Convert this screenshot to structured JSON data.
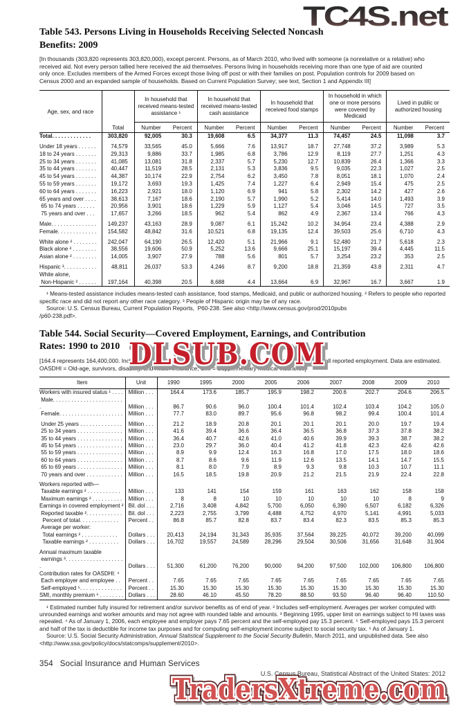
{
  "watermarks": {
    "top_right": "TC4S.net",
    "middle": "DLSUB.COM",
    "bottom": "TradersXtreme.com"
  },
  "table543": {
    "title": "Table 543. Persons Living in Households Receiving Selected Noncash\nBenefits: 2009",
    "note": "[In thousands (303,820 represents 303,820,000), except percent. Persons, as of March 2010, who lived with someone (a nonrelative or a relative) who received aid. Not every person tallied here received the aid themselves. Persons living in households receiving more than one type of aid are counted only once. Excludes members of the Armed Forces except those living off post or with their families on post. Population controls for 2009 based on Census 2000 and an expanded sample of households. Based on Current Population Survey; see text, Section 1 and Appendix III]",
    "stub_header": "Age, sex, and race",
    "total_header": "Total",
    "groups": [
      "In household that received means-tested assistance ¹",
      "In household that received means-tested cash assistance",
      "In household that received food stamps",
      "In household in which one or more persons were covered by Medicaid",
      "Lived in public or authorized housing"
    ],
    "subheaders": [
      "Number",
      "Percent"
    ],
    "rows": [
      {
        "label": "Total. . . . . . . . . . . . .",
        "bold": true,
        "gap": false,
        "values": [
          "303,820",
          "92,005",
          "30.3",
          "19,608",
          "6.5",
          "34,377",
          "11.3",
          "74,457",
          "24.5",
          "11,098",
          "3.7"
        ]
      },
      {
        "label": "Under 18 years . . . . . .",
        "bold": false,
        "gap": true,
        "values": [
          "74,579",
          "33,565",
          "45.0",
          "5,666",
          "7.6",
          "13,917",
          "18.7",
          "27,748",
          "37.2",
          "3,989",
          "5.3"
        ]
      },
      {
        "label": "18 to 24 years . . . . . . .",
        "bold": false,
        "gap": false,
        "values": [
          "29,313",
          "9,886",
          "33.7",
          "1,985",
          "6.8",
          "3,786",
          "12.9",
          "8,119",
          "27.7",
          "1,251",
          "4.3"
        ]
      },
      {
        "label": "25 to 34 years . . . . . . .",
        "bold": false,
        "gap": false,
        "values": [
          "41,085",
          "13,081",
          "31.8",
          "2,337",
          "5.7",
          "5,230",
          "12.7",
          "10,839",
          "26.4",
          "1,366",
          "3.3"
        ]
      },
      {
        "label": "35 to 44 years . . . . . . .",
        "bold": false,
        "gap": false,
        "values": [
          "40,447",
          "11,519",
          "28.5",
          "2,131",
          "5.3",
          "3,836",
          "9.5",
          "9,035",
          "22.3",
          "1,027",
          "2.5"
        ]
      },
      {
        "label": "45 to 54 years . . . . . . .",
        "bold": false,
        "gap": false,
        "values": [
          "44,387",
          "10,174",
          "22.9",
          "2,754",
          "6.2",
          "3,450",
          "7.8",
          "8,051",
          "18.1",
          "1,070",
          "2.4"
        ]
      },
      {
        "label": "55 to 59 years . . . . . . .",
        "bold": false,
        "gap": false,
        "values": [
          "19,172",
          "3,693",
          "19.3",
          "1,425",
          "7.4",
          "1,227",
          "6.4",
          "2,949",
          "15.4",
          "475",
          "2.5"
        ]
      },
      {
        "label": "60 to 64 years . . . . . . .",
        "bold": false,
        "gap": false,
        "values": [
          "16,223",
          "2,921",
          "18.0",
          "1,120",
          "6.9",
          "941",
          "5.8",
          "2,302",
          "14.2",
          "427",
          "2.6"
        ]
      },
      {
        "label": "65 years and over . . . .",
        "bold": false,
        "gap": false,
        "values": [
          "38,613",
          "7,167",
          "18.6",
          "2,190",
          "5.7",
          "1,990",
          "5.2",
          "5,414",
          "14.0",
          "1,493",
          "3.9"
        ]
      },
      {
        "label": " 65 to 74 years . . . . . .",
        "bold": false,
        "gap": false,
        "values": [
          "20,956",
          "3,901",
          "18.6",
          "1,229",
          "5.9",
          "1,127",
          "5.4",
          "3,046",
          "14.5",
          "727",
          "3.5"
        ]
      },
      {
        "label": " 75 years and over . . .",
        "bold": false,
        "gap": false,
        "values": [
          "17,657",
          "3,266",
          "18.5",
          "962",
          "5.4",
          "862",
          "4.9",
          "2,367",
          "13.4",
          "766",
          "4.3"
        ]
      },
      {
        "label": "Male. . . . . . . . . . . . . . .",
        "bold": false,
        "gap": true,
        "values": [
          "149,237",
          "43,163",
          "28.9",
          "9,087",
          "6.1",
          "15,242",
          "10.2",
          "34,954",
          "23.4",
          "4,388",
          "2.9"
        ]
      },
      {
        "label": "Female. . . . . . . . . . . . .",
        "bold": false,
        "gap": false,
        "values": [
          "154,582",
          "48,842",
          "31.6",
          "10,521",
          "6.8",
          "19,135",
          "12.4",
          "39,503",
          "25.6",
          "6,710",
          "4.3"
        ]
      },
      {
        "label": "White alone ² . . . . . . . .",
        "bold": false,
        "gap": true,
        "values": [
          "242,047",
          "64,190",
          "26.5",
          "12,420",
          "5.1",
          "21,966",
          "9.1",
          "52,480",
          "21.7",
          "5,618",
          "2.3"
        ]
      },
      {
        "label": "Black alone ² . . . . . . . .",
        "bold": false,
        "gap": false,
        "values": [
          "38,556",
          "19,606",
          "50.9",
          "5,252",
          "13.6",
          "9,666",
          "25.1",
          "15,197",
          "39.4",
          "4,445",
          "11.5"
        ]
      },
      {
        "label": "Asian alone ² . . . . . . . .",
        "bold": false,
        "gap": false,
        "values": [
          "14,005",
          "3,907",
          "27.9",
          "788",
          "5.6",
          "801",
          "5.7",
          "3,254",
          "23.2",
          "353",
          "2.5"
        ]
      },
      {
        "label": "Hispanic ³. . . . . . . . . . .",
        "bold": false,
        "gap": true,
        "values": [
          "48,811",
          "26,037",
          "53.3",
          "4,246",
          "8.7",
          "9,200",
          "18.8",
          "21,359",
          "43.8",
          "2,311",
          "4.7"
        ]
      },
      {
        "label": "White alone,\n Non-Hispanic ² . . . . . .",
        "bold": false,
        "gap": false,
        "values": [
          "197,164",
          "40,398",
          "20.5",
          "8,688",
          "4.4",
          "13,664",
          "6.9",
          "32,967",
          "16.7",
          "3,667",
          "1.9"
        ]
      }
    ],
    "footnotes": "¹ Means-tested assistance includes means-tested cash assistance, food stamps, Medicaid, and public or authorized housing. ² Refers to people who reported specific race and did not report any other race category. ³ People of Hispanic origin may be of any race.",
    "source": "Source: U.S. Census Bureau, Current Population Reports,  P60-238. See also <http://www.census.gov/prod/2010pubs\n/p60-238.pdf>."
  },
  "table544": {
    "title": "Table 544. Social Security—Covered Employment, Earnings, and Contribution\nRates: 1990 to 2010",
    "note": "[164.4 represents 164,400,000. Includes Puerto Rico, Virgin Islands, American Samoa, and Guam. Represents all reported employment. Data are estimated. OASDHI = Old-age, survivors, disability, and health insurance; SMI = Supplementary medical insurance]",
    "item_header": "Item",
    "unit_header": "Unit",
    "years": [
      "1990",
      "1995",
      "2000",
      "2005",
      "2006",
      "2007",
      "2008",
      "2009",
      "2010"
    ],
    "rows": [
      {
        "label": "Workers with insured status ¹ . . . .",
        "unit": "Million . . .",
        "gap": false,
        "values": [
          "164.4",
          "173.6",
          "185.7",
          "195.9",
          "198.2",
          "200.6",
          "202.7",
          "204.6",
          "206.5"
        ]
      },
      {
        "label": " Male. . . . . . . . . . . . . . . . . . . . . . . .",
        "unit": "Million . . .",
        "gap": false,
        "values": [
          "86.7",
          "90.6",
          "96.0",
          "100.4",
          "101.4",
          "102.4",
          "103.4",
          "104.2",
          "105.0"
        ]
      },
      {
        "label": " Female. . . . . . . . . . . . . . . . . . . . .",
        "unit": "Million . . .",
        "gap": false,
        "values": [
          "77.7",
          "83.0",
          "89.7",
          "95.6",
          "96.8",
          "98.2",
          "99.4",
          "100.4",
          "101.4"
        ]
      },
      {
        "label": " Under 25 years . . . . . . . . . . . . . .",
        "unit": "Million . . .",
        "gap": true,
        "values": [
          "21.2",
          "18.9",
          "20.8",
          "20.1",
          "20.1",
          "20.1",
          "20.0",
          "19.7",
          "19.4"
        ]
      },
      {
        "label": " 25 to 34 years . . . . . . . . . . . . . . .",
        "unit": "Million . . .",
        "gap": false,
        "values": [
          "41.6",
          "39.4",
          "36.6",
          "36.4",
          "36.5",
          "36.8",
          "37.3",
          "37.8",
          "38.2"
        ]
      },
      {
        "label": " 35 to 44 years . . . . . . . . . . . . . . .",
        "unit": "Million . . .",
        "gap": false,
        "values": [
          "36.4",
          "40.7",
          "42.6",
          "41.0",
          "40.6",
          "39.9",
          "39.3",
          "38.7",
          "38.2"
        ]
      },
      {
        "label": " 45 to 54 years . . . . . . . . . . . . . . .",
        "unit": "Million . . .",
        "gap": false,
        "values": [
          "23.0",
          "29.7",
          "36.0",
          "40.4",
          "41.2",
          "41.8",
          "42.3",
          "42.6",
          "42.6"
        ]
      },
      {
        "label": " 55 to 59 years . . . . . . . . . . . . . . .",
        "unit": "Million . . .",
        "gap": false,
        "values": [
          "8.9",
          "9.9",
          "12.4",
          "16.3",
          "16.8",
          "17.0",
          "17.5",
          "18.0",
          "18.6"
        ]
      },
      {
        "label": " 60 to 64 years . . . . . . . . . . . . . . .",
        "unit": "Million . . .",
        "gap": false,
        "values": [
          "8.7",
          "8.6",
          "9.6",
          "11.9",
          "12.6",
          "13.5",
          "14.1",
          "14.7",
          "15.5"
        ]
      },
      {
        "label": " 65 to 69 years . . . . . . . . . . . . . . .",
        "unit": "Million . . .",
        "gap": false,
        "values": [
          "8.1",
          "8.0",
          "7.9",
          "8.9",
          "9.3",
          "9.8",
          "10.3",
          "10.7",
          "11.1"
        ]
      },
      {
        "label": " 70 years and over . . . . . . . . . . . .",
        "unit": "Million . . .",
        "gap": false,
        "values": [
          "16.5",
          "18.5",
          "19.8",
          "20.9",
          "21.2",
          "21.5",
          "21.9",
          "22.4",
          "22.8"
        ]
      },
      {
        "label": "Workers reported with—",
        "unit": "",
        "gap": true,
        "values": []
      },
      {
        "label": " Taxable earnings ² . . . . . . . . . . .",
        "unit": "Million . . .",
        "gap": false,
        "values": [
          "133",
          "141",
          "154",
          "159",
          "161",
          "163",
          "162",
          "158",
          "158"
        ]
      },
      {
        "label": " Maximum earnings ² . . . . . . . . . .",
        "unit": "Million . . .",
        "gap": false,
        "values": [
          "8",
          "8",
          "10",
          "10",
          "10",
          "10",
          "10",
          "8",
          "9"
        ]
      },
      {
        "label": "Earnings in covered employment ²",
        "unit": "Bil. dol . . .",
        "gap": false,
        "values": [
          "2,716",
          "3,408",
          "4,842",
          "5,700",
          "6,050",
          "6,390",
          "6,507",
          "6,182",
          "6,326"
        ]
      },
      {
        "label": " Reported taxable ². . . . . . . . . . . .",
        "unit": "Bil. dol . . .",
        "gap": false,
        "values": [
          "2,223",
          "2,755",
          "3,799",
          "4,488",
          "4,752",
          "4,970",
          "5,141",
          "4,991",
          "5,033"
        ]
      },
      {
        "label": "  Percent of total. . . . . . . . . . . . .",
        "unit": "Percent . .",
        "gap": false,
        "values": [
          "86.8",
          "85.7",
          "82.8",
          "83.7",
          "83.4",
          "82.3",
          "83.5",
          "85.3",
          "85.3"
        ]
      },
      {
        "label": " Average per worker:",
        "unit": "",
        "gap": false,
        "values": []
      },
      {
        "label": "  Total earnings ² . . . . . . . . . . . .",
        "unit": "Dollars . . .",
        "gap": false,
        "values": [
          "20,413",
          "24,194",
          "31,343",
          "35,935",
          "37,564",
          "39,225",
          "40,072",
          "39,200",
          "40,099"
        ]
      },
      {
        "label": "  Taxable earnings ² . . . . . . . . . .",
        "unit": "Dollars . . .",
        "gap": false,
        "values": [
          "16,702",
          "19,557",
          "24,589",
          "28,296",
          "29,504",
          "30,506",
          "31,656",
          "31,648",
          "31,904"
        ]
      },
      {
        "label": "Annual maximum taxable\n earnings ³. . . . . . . . . . . . . . . . . . . .",
        "unit": "Dollars . . .",
        "gap": true,
        "values": [
          "51,300",
          "61,200",
          "76,200",
          "90,000",
          "94,200",
          "97,500",
          "102,000",
          "106,800",
          "106,800"
        ]
      },
      {
        "label": "Contribution rates for OASDHI: ⁴",
        "unit": "",
        "gap": false,
        "values": []
      },
      {
        "label": " Each employer and employee . .",
        "unit": "Percent . .",
        "gap": false,
        "values": [
          "7.65",
          "7.65",
          "7.65",
          "7.65",
          "7.65",
          "7.65",
          "7.65",
          "7.65",
          "7.65"
        ]
      },
      {
        "label": " Self-employed ⁵. . . . . . . . . . . . . .",
        "unit": "Percent . .",
        "gap": false,
        "values": [
          "15.30",
          "15.30",
          "15.30",
          "15.30",
          "15.30",
          "15.30",
          "15.30",
          "15.30",
          "15.30"
        ]
      },
      {
        "label": "SMI, monthly premium ⁶ . . . . . . . .",
        "unit": "Dollars . . .",
        "gap": false,
        "values": [
          "28.60",
          "46.10",
          "45.50",
          "78.20",
          "88.50",
          "93.50",
          "96.40",
          "96.40",
          "110.50"
        ]
      }
    ],
    "footnotes": "¹ Estimated number fully insured for retirement and/or survivor benefits as of end of year. ² Includes self-employment. Averages per worker computed with unrounded earnings and worker amounts and may not agree with rounded table and amounts. ³ Beginning 1995, upper limit on earnings subject to HI taxes was repealed. ⁴ As of January 1, 2006, each employee and employer pays 7.65 percent and the self-employed pay 15.3 percent. ⁵ Self-employed pays 15.3 percent and half of the tax is deductible for income tax purposes and for computing self-employment income subject to social security tax. ⁶ As of January 1.",
    "source_prefix": "Source: U.S. Social Security Administration, ",
    "source_italic": "Annual Statistical Supplement to the Social Security Bulletin",
    "source_suffix": ", March 2011, and unpublished data. See also <http://www.ssa.gov/policy/docs/statcomps/supplement/2010>."
  },
  "footer": {
    "page_number": "354",
    "section": "Social Insurance and Human Services",
    "credit": "U.S. Census Bureau, Statistical Abstract of the United States: 2012"
  }
}
